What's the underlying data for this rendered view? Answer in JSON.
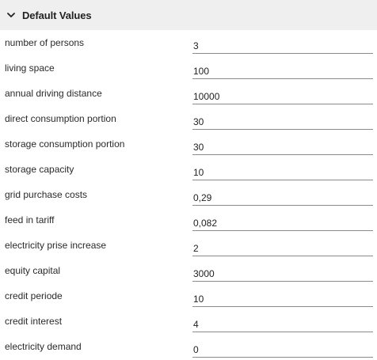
{
  "header": {
    "title": "Default Values",
    "icon": "chevron-down-icon"
  },
  "fields": [
    {
      "label": "number of persons",
      "value": "3"
    },
    {
      "label": "living space",
      "value": "100"
    },
    {
      "label": "annual driving distance",
      "value": "10000"
    },
    {
      "label": "direct consumption portion",
      "value": "30"
    },
    {
      "label": "storage consumption portion",
      "value": "30"
    },
    {
      "label": "storage capacity",
      "value": "10"
    },
    {
      "label": "grid purchase costs",
      "value": "0,29"
    },
    {
      "label": "feed in tariff",
      "value": "0,082"
    },
    {
      "label": "electricity prise increase",
      "value": "2"
    },
    {
      "label": "equity capital",
      "value": "3000"
    },
    {
      "label": "credit periode",
      "value": "10"
    },
    {
      "label": "credit interest",
      "value": "4"
    },
    {
      "label": "electricity demand",
      "value": "0"
    }
  ]
}
